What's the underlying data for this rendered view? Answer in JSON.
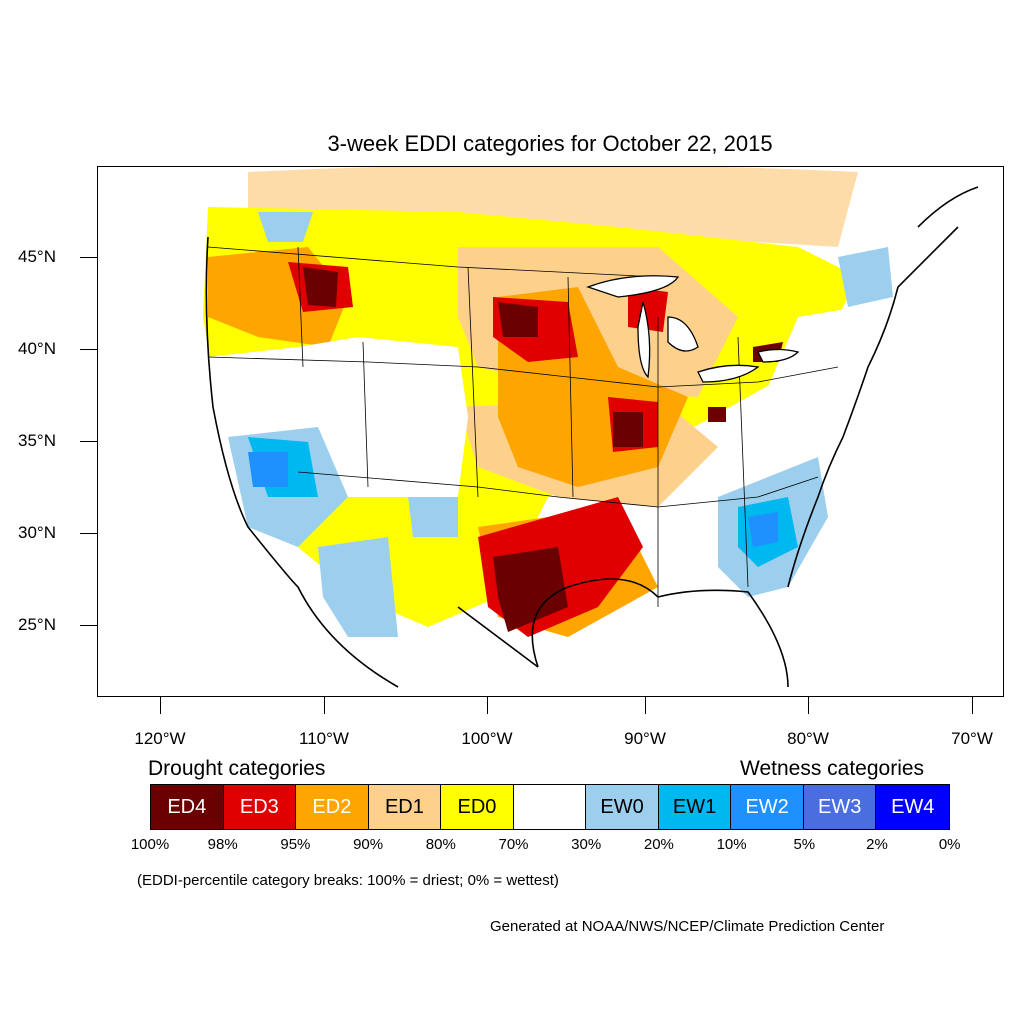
{
  "title": "3-week EDDI categories for October 22, 2015",
  "lat_labels": [
    "45°N",
    "40°N",
    "35°N",
    "30°N",
    "25°N"
  ],
  "lon_labels": [
    "120°W",
    "110°W",
    "100°W",
    "90°W",
    "80°W",
    "70°W"
  ],
  "legend": {
    "drought_title": "Drought categories",
    "wetness_title": "Wetness categories",
    "categories": [
      {
        "label": "ED4",
        "color": "#6b0000",
        "text_color": "#ffffff"
      },
      {
        "label": "ED3",
        "color": "#e00000",
        "text_color": "#ffffff"
      },
      {
        "label": "ED2",
        "color": "#ffa500",
        "text_color": "#ffffff"
      },
      {
        "label": "ED1",
        "color": "#fdd08c",
        "text_color": "#000000"
      },
      {
        "label": "ED0",
        "color": "#ffff00",
        "text_color": "#000000"
      },
      {
        "label": "",
        "color": "#ffffff",
        "text_color": "#000000"
      },
      {
        "label": "EW0",
        "color": "#9ccfee",
        "text_color": "#000000"
      },
      {
        "label": "EW1",
        "color": "#00b8f0",
        "text_color": "#000000"
      },
      {
        "label": "EW2",
        "color": "#1e90ff",
        "text_color": "#ffffff"
      },
      {
        "label": "EW3",
        "color": "#4a6ee0",
        "text_color": "#ffffff"
      },
      {
        "label": "EW4",
        "color": "#0000ff",
        "text_color": "#ffffff"
      }
    ],
    "percentiles": [
      "100%",
      "98%",
      "95%",
      "90%",
      "80%",
      "70%",
      "30%",
      "20%",
      "10%",
      "5%",
      "2%",
      "0%"
    ]
  },
  "note": "(EDDI-percentile category breaks: 100% = driest; 0% = wettest)",
  "credit": "Generated at NOAA/NWS/NCEP/Climate Prediction Center"
}
